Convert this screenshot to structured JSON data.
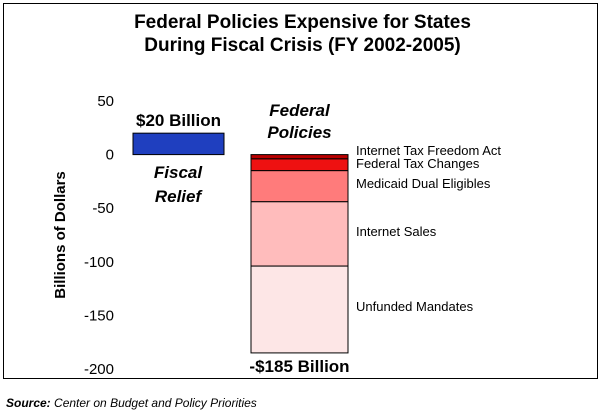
{
  "chart_data": {
    "type": "bar",
    "title_lines": [
      "Federal Policies Expensive for States",
      "During Fiscal Crisis (FY 2002-2005)"
    ],
    "ylabel": "Billions of Dollars",
    "ylim": [
      -200,
      50
    ],
    "yticks": [
      50,
      0,
      -50,
      -100,
      -150,
      -200
    ],
    "grid": false,
    "bars": [
      {
        "name": "Fiscal Relief",
        "top_label": "$20 Billion",
        "inside_label_lines": [
          "Fiscal",
          "Relief"
        ],
        "color": "#1f3fbf",
        "segments": [
          {
            "label": "",
            "start": 0,
            "end": 20,
            "color": "#1f3fbf"
          }
        ]
      },
      {
        "name": "Federal Policies",
        "top_label_lines": [
          "Federal",
          "Policies"
        ],
        "bottom_label": "-$185 Billion",
        "segments": [
          {
            "label": "Internet Tax Freedom Act",
            "start": 0,
            "end": -4,
            "color": "#b80000"
          },
          {
            "label": "Federal Tax Changes",
            "start": -4,
            "end": -15,
            "color": "#ee1111"
          },
          {
            "label": "Medicaid Dual  Eligibles",
            "start": -15,
            "end": -44,
            "color": "#ff7b7b"
          },
          {
            "label": "Internet Sales",
            "start": -44,
            "end": -104,
            "color": "#ffbcbc"
          },
          {
            "label": "Unfunded Mandates",
            "start": -104,
            "end": -185,
            "color": "#fde6e6"
          }
        ]
      }
    ]
  },
  "source": {
    "label": "Source:",
    "text": "Center on Budget and Policy Priorities"
  }
}
